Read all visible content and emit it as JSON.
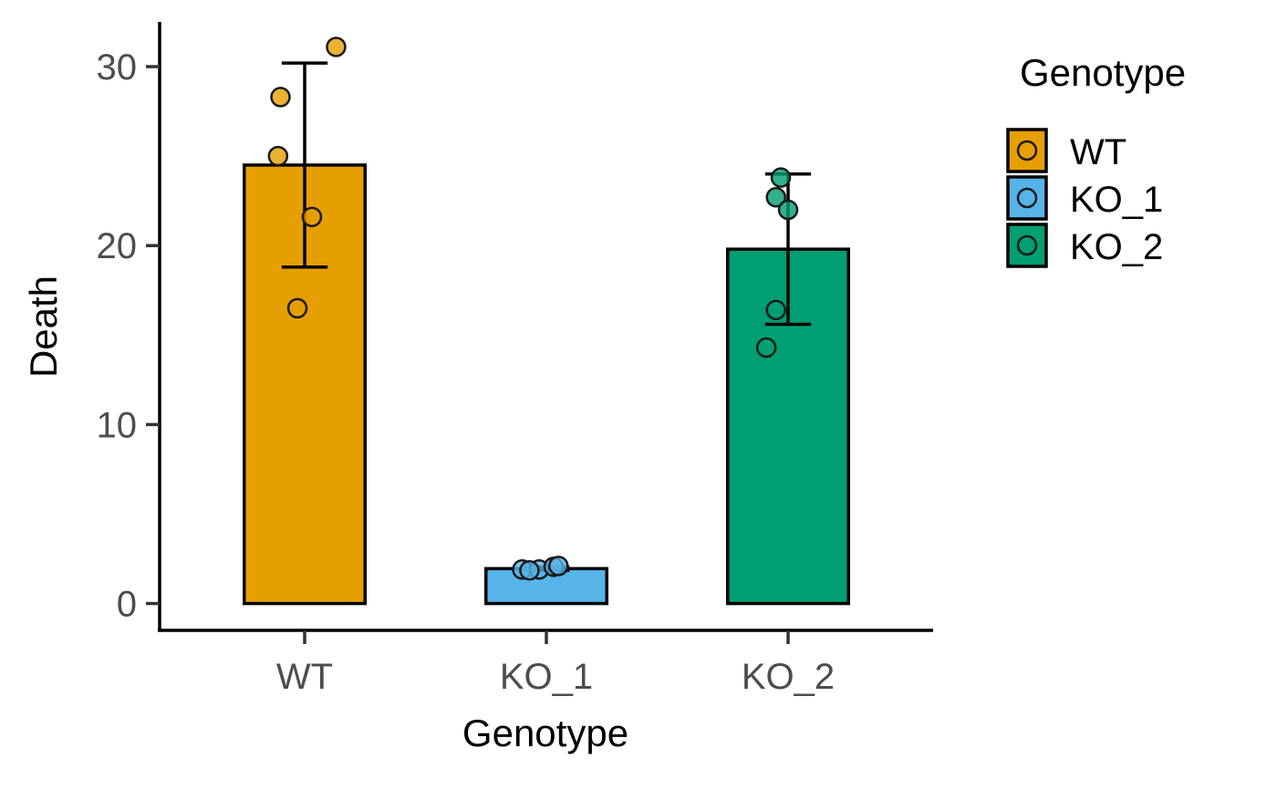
{
  "chart_data": {
    "type": "bar",
    "title": "",
    "xlabel": "Genotype",
    "ylabel": "Death",
    "categories": [
      "WT",
      "KO_1",
      "KO_2"
    ],
    "ylim": [
      -1.5,
      32.5
    ],
    "y_ticks": [
      "0",
      "10",
      "20",
      "30"
    ],
    "grid": false,
    "legend": {
      "title": "Genotype",
      "position": "right",
      "entries": [
        "WT",
        "KO_1",
        "KO_2"
      ]
    },
    "colors": {
      "WT": "#E69F00",
      "KO_1": "#56B4E9",
      "KO_2": "#009E73"
    },
    "bars": [
      {
        "category": "WT",
        "mean": 24.5,
        "error_low": 18.8,
        "error_high": 30.2
      },
      {
        "category": "KO_1",
        "mean": 1.95,
        "error_low": 1.85,
        "error_high": 2.05
      },
      {
        "category": "KO_2",
        "mean": 19.8,
        "error_low": 15.6,
        "error_high": 24.0
      }
    ],
    "points": [
      {
        "category": "WT",
        "jitter": 0.13,
        "y": 31.1
      },
      {
        "category": "WT",
        "jitter": -0.1,
        "y": 28.3
      },
      {
        "category": "WT",
        "jitter": -0.11,
        "y": 25.0
      },
      {
        "category": "WT",
        "jitter": 0.03,
        "y": 21.6
      },
      {
        "category": "WT",
        "jitter": -0.03,
        "y": 16.5
      },
      {
        "category": "KO_1",
        "jitter": -0.1,
        "y": 1.9
      },
      {
        "category": "KO_1",
        "jitter": -0.03,
        "y": 1.9
      },
      {
        "category": "KO_1",
        "jitter": 0.03,
        "y": 2.05
      },
      {
        "category": "KO_1",
        "jitter": 0.05,
        "y": 2.1
      },
      {
        "category": "KO_1",
        "jitter": -0.07,
        "y": 1.85
      },
      {
        "category": "KO_2",
        "jitter": -0.03,
        "y": 23.8
      },
      {
        "category": "KO_2",
        "jitter": -0.05,
        "y": 22.7
      },
      {
        "category": "KO_2",
        "jitter": 0.0,
        "y": 22.0
      },
      {
        "category": "KO_2",
        "jitter": -0.05,
        "y": 16.4
      },
      {
        "category": "KO_2",
        "jitter": -0.09,
        "y": 14.3
      }
    ]
  }
}
